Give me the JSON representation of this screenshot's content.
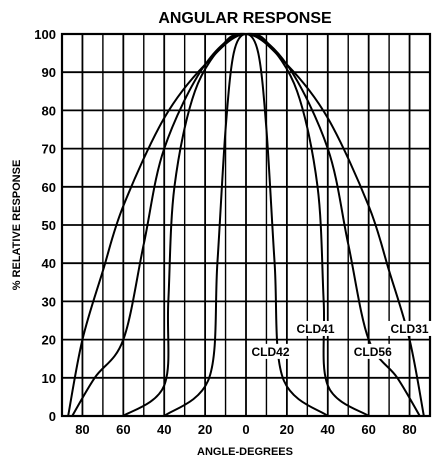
{
  "chart_data": {
    "type": "line",
    "title": "ANGULAR RESPONSE",
    "xlabel": "ANGLE-DEGREES",
    "ylabel": "% RELATIVE RESPONSE",
    "xlim": [
      -90,
      90
    ],
    "ylim": [
      0,
      100
    ],
    "x_ticks": [
      -80,
      -60,
      -40,
      -20,
      0,
      20,
      40,
      60,
      80
    ],
    "x_tick_labels": [
      "80",
      "60",
      "40",
      "20",
      "0",
      "20",
      "40",
      "60",
      "80"
    ],
    "y_ticks": [
      0,
      10,
      20,
      30,
      40,
      50,
      60,
      70,
      80,
      90,
      100
    ],
    "grid": true,
    "series": [
      {
        "name": "CLD31",
        "points": [
          [
            -87,
            0
          ],
          [
            -80,
            20
          ],
          [
            -70,
            38
          ],
          [
            -60,
            55
          ],
          [
            -40,
            78
          ],
          [
            -20,
            92
          ],
          [
            0,
            100
          ],
          [
            20,
            92
          ],
          [
            40,
            78
          ],
          [
            60,
            55
          ],
          [
            70,
            38
          ],
          [
            80,
            20
          ],
          [
            87,
            0
          ]
        ]
      },
      {
        "name": "CLD56",
        "points": [
          [
            -85,
            0
          ],
          [
            -74,
            10
          ],
          [
            -60,
            20
          ],
          [
            -50,
            45
          ],
          [
            -40,
            70
          ],
          [
            -20,
            92
          ],
          [
            0,
            100
          ],
          [
            20,
            92
          ],
          [
            40,
            70
          ],
          [
            50,
            45
          ],
          [
            60,
            20
          ],
          [
            74,
            10
          ],
          [
            85,
            0
          ]
        ]
      },
      {
        "name": "CLD41",
        "points": [
          [
            -60,
            0
          ],
          [
            -40,
            8
          ],
          [
            -38,
            30
          ],
          [
            -35,
            60
          ],
          [
            -25,
            85
          ],
          [
            -10,
            98
          ],
          [
            0,
            100
          ],
          [
            10,
            98
          ],
          [
            25,
            85
          ],
          [
            35,
            60
          ],
          [
            38,
            30
          ],
          [
            40,
            8
          ],
          [
            60,
            0
          ]
        ]
      },
      {
        "name": "CLD42",
        "points": [
          [
            -40,
            0
          ],
          [
            -18,
            10
          ],
          [
            -14,
            40
          ],
          [
            -10,
            75
          ],
          [
            -6,
            95
          ],
          [
            0,
            100
          ],
          [
            6,
            95
          ],
          [
            10,
            75
          ],
          [
            14,
            40
          ],
          [
            18,
            10
          ],
          [
            40,
            0
          ]
        ]
      }
    ],
    "annotations": [
      {
        "text": "CLD42",
        "x": 12,
        "y": 16
      },
      {
        "text": "CLD41",
        "x": 34,
        "y": 22
      },
      {
        "text": "CLD56",
        "x": 62,
        "y": 16
      },
      {
        "text": "CLD31",
        "x": 80,
        "y": 22
      }
    ]
  }
}
